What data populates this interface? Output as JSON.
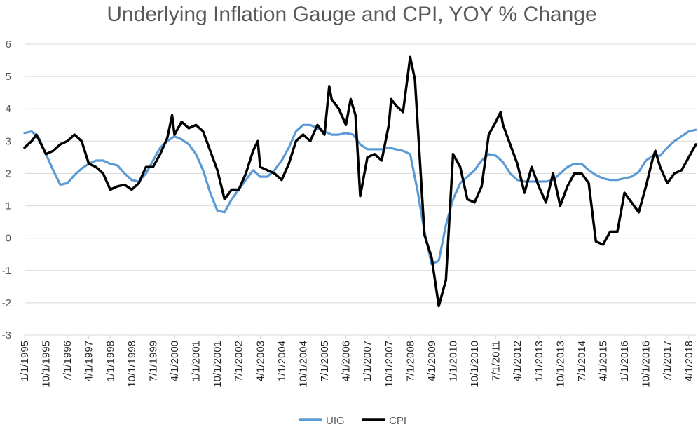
{
  "chart_data": {
    "type": "line",
    "title": "Underlying Inflation Gauge and CPI, YOY % Change",
    "xlabel": "",
    "ylabel": "",
    "ylim": [
      -3,
      6
    ],
    "y_ticks": [
      -3,
      -2,
      -1,
      0,
      1,
      2,
      3,
      4,
      5,
      6
    ],
    "x_range": [
      "1/1/1995",
      "7/1/2018"
    ],
    "x_ticks": [
      "1/1/1995",
      "10/1/1995",
      "7/1/1996",
      "4/1/1997",
      "1/1/1998",
      "10/1/1998",
      "7/1/1999",
      "4/1/2000",
      "1/1/2001",
      "10/1/2001",
      "7/1/2002",
      "4/1/2003",
      "1/1/2004",
      "10/1/2004",
      "7/1/2005",
      "4/1/2006",
      "1/1/2007",
      "10/1/2007",
      "7/1/2008",
      "4/1/2009",
      "1/1/2010",
      "10/1/2010",
      "7/1/2011",
      "4/1/2012",
      "1/1/2013",
      "10/1/2013",
      "7/1/2014",
      "4/1/2015",
      "1/1/2016",
      "10/1/2016",
      "7/1/2017",
      "4/1/2018"
    ],
    "grid": true,
    "legend_position": "bottom",
    "series": [
      {
        "name": "UIG",
        "color": "#5b9bd5",
        "points": [
          [
            "1/1/1995",
            3.25
          ],
          [
            "4/1/1995",
            3.3
          ],
          [
            "7/1/1995",
            3.1
          ],
          [
            "10/1/1995",
            2.6
          ],
          [
            "1/1/1996",
            2.1
          ],
          [
            "4/1/1996",
            1.65
          ],
          [
            "7/1/1996",
            1.7
          ],
          [
            "10/1/1996",
            1.95
          ],
          [
            "1/1/1997",
            2.15
          ],
          [
            "4/1/1997",
            2.3
          ],
          [
            "7/1/1997",
            2.4
          ],
          [
            "10/1/1997",
            2.4
          ],
          [
            "1/1/1998",
            2.3
          ],
          [
            "4/1/1998",
            2.25
          ],
          [
            "7/1/1998",
            2.0
          ],
          [
            "10/1/1998",
            1.8
          ],
          [
            "1/1/1999",
            1.75
          ],
          [
            "4/1/1999",
            2.0
          ],
          [
            "7/1/1999",
            2.4
          ],
          [
            "10/1/1999",
            2.8
          ],
          [
            "1/1/2000",
            3.0
          ],
          [
            "4/1/2000",
            3.15
          ],
          [
            "7/1/2000",
            3.05
          ],
          [
            "10/1/2000",
            2.9
          ],
          [
            "1/1/2001",
            2.6
          ],
          [
            "4/1/2001",
            2.1
          ],
          [
            "7/1/2001",
            1.4
          ],
          [
            "10/1/2001",
            0.85
          ],
          [
            "1/1/2002",
            0.8
          ],
          [
            "4/1/2002",
            1.2
          ],
          [
            "7/1/2002",
            1.5
          ],
          [
            "10/1/2002",
            1.8
          ],
          [
            "1/1/2003",
            2.1
          ],
          [
            "4/1/2003",
            1.9
          ],
          [
            "7/1/2003",
            1.9
          ],
          [
            "10/1/2003",
            2.1
          ],
          [
            "1/1/2004",
            2.4
          ],
          [
            "4/1/2004",
            2.8
          ],
          [
            "7/1/2004",
            3.3
          ],
          [
            "10/1/2004",
            3.5
          ],
          [
            "1/1/2005",
            3.5
          ],
          [
            "4/1/2005",
            3.4
          ],
          [
            "7/1/2005",
            3.3
          ],
          [
            "10/1/2005",
            3.2
          ],
          [
            "1/1/2006",
            3.2
          ],
          [
            "4/1/2006",
            3.25
          ],
          [
            "7/1/2006",
            3.2
          ],
          [
            "10/1/2006",
            2.9
          ],
          [
            "1/1/2007",
            2.75
          ],
          [
            "4/1/2007",
            2.75
          ],
          [
            "7/1/2007",
            2.75
          ],
          [
            "10/1/2007",
            2.8
          ],
          [
            "1/1/2008",
            2.75
          ],
          [
            "4/1/2008",
            2.7
          ],
          [
            "7/1/2008",
            2.6
          ],
          [
            "10/1/2008",
            1.5
          ],
          [
            "1/1/2009",
            0.2
          ],
          [
            "4/1/2009",
            -0.8
          ],
          [
            "7/1/2009",
            -0.7
          ],
          [
            "10/1/2009",
            0.4
          ],
          [
            "1/1/2010",
            1.2
          ],
          [
            "4/1/2010",
            1.7
          ],
          [
            "7/1/2010",
            1.9
          ],
          [
            "10/1/2010",
            2.1
          ],
          [
            "1/1/2011",
            2.4
          ],
          [
            "4/1/2011",
            2.6
          ],
          [
            "7/1/2011",
            2.55
          ],
          [
            "10/1/2011",
            2.35
          ],
          [
            "1/1/2012",
            2.0
          ],
          [
            "4/1/2012",
            1.8
          ],
          [
            "7/1/2012",
            1.75
          ],
          [
            "10/1/2012",
            1.75
          ],
          [
            "1/1/2013",
            1.75
          ],
          [
            "4/1/2013",
            1.75
          ],
          [
            "7/1/2013",
            1.8
          ],
          [
            "10/1/2013",
            2.0
          ],
          [
            "1/1/2014",
            2.2
          ],
          [
            "4/1/2014",
            2.3
          ],
          [
            "7/1/2014",
            2.3
          ],
          [
            "10/1/2014",
            2.1
          ],
          [
            "1/1/2015",
            1.95
          ],
          [
            "4/1/2015",
            1.85
          ],
          [
            "7/1/2015",
            1.8
          ],
          [
            "10/1/2015",
            1.8
          ],
          [
            "1/1/2016",
            1.85
          ],
          [
            "4/1/2016",
            1.9
          ],
          [
            "7/1/2016",
            2.05
          ],
          [
            "10/1/2016",
            2.4
          ],
          [
            "1/1/2017",
            2.55
          ],
          [
            "4/1/2017",
            2.55
          ],
          [
            "7/1/2017",
            2.8
          ],
          [
            "10/1/2017",
            3.0
          ],
          [
            "1/1/2018",
            3.15
          ],
          [
            "4/1/2018",
            3.3
          ],
          [
            "7/1/2018",
            3.35
          ]
        ]
      },
      {
        "name": "CPI",
        "color": "#000000",
        "points": [
          [
            "1/1/1995",
            2.8
          ],
          [
            "4/1/1995",
            3.0
          ],
          [
            "6/1/1995",
            3.2
          ],
          [
            "10/1/1995",
            2.6
          ],
          [
            "1/1/1996",
            2.7
          ],
          [
            "4/1/1996",
            2.9
          ],
          [
            "7/1/1996",
            3.0
          ],
          [
            "10/1/1996",
            3.2
          ],
          [
            "1/1/1997",
            3.0
          ],
          [
            "4/1/1997",
            2.3
          ],
          [
            "7/1/1997",
            2.2
          ],
          [
            "10/1/1997",
            2.0
          ],
          [
            "1/1/1998",
            1.5
          ],
          [
            "4/1/1998",
            1.6
          ],
          [
            "7/1/1998",
            1.65
          ],
          [
            "10/1/1998",
            1.5
          ],
          [
            "1/1/1999",
            1.7
          ],
          [
            "4/1/1999",
            2.2
          ],
          [
            "7/1/1999",
            2.2
          ],
          [
            "10/1/1999",
            2.6
          ],
          [
            "1/1/2000",
            3.1
          ],
          [
            "3/1/2000",
            3.8
          ],
          [
            "4/1/2000",
            3.2
          ],
          [
            "7/1/2000",
            3.6
          ],
          [
            "10/1/2000",
            3.4
          ],
          [
            "1/1/2001",
            3.5
          ],
          [
            "4/1/2001",
            3.3
          ],
          [
            "7/1/2001",
            2.7
          ],
          [
            "10/1/2001",
            2.1
          ],
          [
            "1/1/2002",
            1.2
          ],
          [
            "4/1/2002",
            1.5
          ],
          [
            "7/1/2002",
            1.5
          ],
          [
            "10/1/2002",
            2.0
          ],
          [
            "1/1/2003",
            2.7
          ],
          [
            "3/1/2003",
            3.0
          ],
          [
            "4/1/2003",
            2.2
          ],
          [
            "7/1/2003",
            2.1
          ],
          [
            "10/1/2003",
            2.0
          ],
          [
            "1/1/2004",
            1.8
          ],
          [
            "4/1/2004",
            2.3
          ],
          [
            "7/1/2004",
            3.0
          ],
          [
            "10/1/2004",
            3.2
          ],
          [
            "1/1/2005",
            3.0
          ],
          [
            "4/1/2005",
            3.5
          ],
          [
            "7/1/2005",
            3.2
          ],
          [
            "9/1/2005",
            4.7
          ],
          [
            "10/1/2005",
            4.3
          ],
          [
            "1/1/2006",
            4.0
          ],
          [
            "4/1/2006",
            3.5
          ],
          [
            "6/1/2006",
            4.3
          ],
          [
            "8/1/2006",
            3.8
          ],
          [
            "10/1/2006",
            1.3
          ],
          [
            "1/1/2007",
            2.5
          ],
          [
            "4/1/2007",
            2.6
          ],
          [
            "7/1/2007",
            2.4
          ],
          [
            "10/1/2007",
            3.5
          ],
          [
            "11/1/2007",
            4.3
          ],
          [
            "1/1/2008",
            4.1
          ],
          [
            "4/1/2008",
            3.9
          ],
          [
            "7/1/2008",
            5.6
          ],
          [
            "9/1/2008",
            4.9
          ],
          [
            "10/1/2008",
            3.7
          ],
          [
            "1/1/2009",
            0.1
          ],
          [
            "4/1/2009",
            -0.6
          ],
          [
            "7/1/2009",
            -2.1
          ],
          [
            "10/1/2009",
            -1.3
          ],
          [
            "1/1/2010",
            2.6
          ],
          [
            "4/1/2010",
            2.2
          ],
          [
            "7/1/2010",
            1.2
          ],
          [
            "10/1/2010",
            1.1
          ],
          [
            "1/1/2011",
            1.6
          ],
          [
            "4/1/2011",
            3.2
          ],
          [
            "7/1/2011",
            3.6
          ],
          [
            "9/1/2011",
            3.9
          ],
          [
            "10/1/2011",
            3.5
          ],
          [
            "1/1/2012",
            2.9
          ],
          [
            "4/1/2012",
            2.3
          ],
          [
            "7/1/2012",
            1.4
          ],
          [
            "10/1/2012",
            2.2
          ],
          [
            "1/1/2013",
            1.6
          ],
          [
            "4/1/2013",
            1.1
          ],
          [
            "7/1/2013",
            2.0
          ],
          [
            "10/1/2013",
            1.0
          ],
          [
            "1/1/2014",
            1.6
          ],
          [
            "4/1/2014",
            2.0
          ],
          [
            "7/1/2014",
            2.0
          ],
          [
            "10/1/2014",
            1.7
          ],
          [
            "1/1/2015",
            -0.1
          ],
          [
            "4/1/2015",
            -0.2
          ],
          [
            "7/1/2015",
            0.2
          ],
          [
            "10/1/2015",
            0.2
          ],
          [
            "1/1/2016",
            1.4
          ],
          [
            "4/1/2016",
            1.1
          ],
          [
            "7/1/2016",
            0.8
          ],
          [
            "10/1/2016",
            1.6
          ],
          [
            "1/1/2017",
            2.5
          ],
          [
            "2/1/2017",
            2.7
          ],
          [
            "4/1/2017",
            2.2
          ],
          [
            "7/1/2017",
            1.7
          ],
          [
            "10/1/2017",
            2.0
          ],
          [
            "1/1/2018",
            2.1
          ],
          [
            "4/1/2018",
            2.5
          ],
          [
            "7/1/2018",
            2.9
          ]
        ]
      }
    ]
  }
}
